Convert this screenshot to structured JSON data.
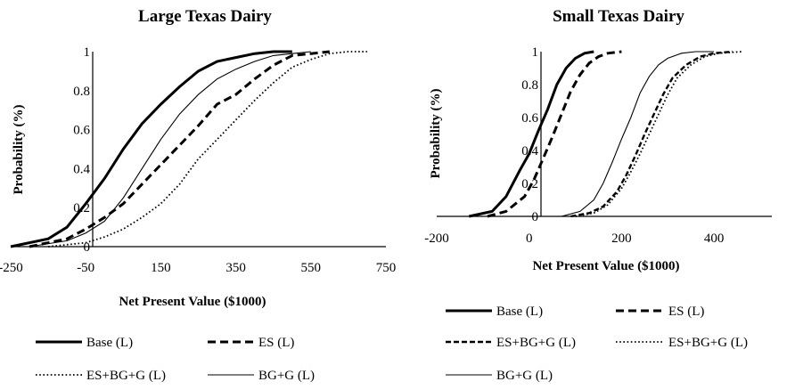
{
  "chart_data": [
    {
      "type": "line",
      "title": "Large Texas Dairy",
      "xlabel": "Net Present Value ($1000)",
      "ylabel": "Probability (%)",
      "xlim": [
        -250,
        750
      ],
      "ylim": [
        0,
        1
      ],
      "x_ticks": [
        -250,
        -50,
        150,
        350,
        550,
        750
      ],
      "x_tick_labels": [
        "-250",
        "-50",
        "150",
        "350",
        "550",
        "750"
      ],
      "y_ticks": [
        0,
        0.2,
        0.4,
        0.6,
        0.8,
        1
      ],
      "y_tick_labels": [
        "0",
        "0.2",
        "0.4",
        "0.6",
        "0.8",
        "1"
      ],
      "legend_position": "bottom",
      "series": [
        {
          "name": "Base (L)",
          "style": "solid-thick",
          "x": [
            -250,
            -150,
            -100,
            -50,
            0,
            50,
            100,
            150,
            200,
            250,
            300,
            350,
            400,
            450,
            500
          ],
          "y": [
            0,
            0.04,
            0.1,
            0.22,
            0.35,
            0.5,
            0.63,
            0.73,
            0.82,
            0.9,
            0.95,
            0.97,
            0.99,
            1,
            1
          ]
        },
        {
          "name": "ES (L)",
          "style": "dashed-thick",
          "x": [
            -200,
            -100,
            -50,
            0,
            50,
            100,
            150,
            200,
            250,
            300,
            350,
            400,
            450,
            500,
            550,
            600
          ],
          "y": [
            0,
            0.04,
            0.09,
            0.15,
            0.22,
            0.32,
            0.42,
            0.52,
            0.62,
            0.73,
            0.78,
            0.86,
            0.93,
            0.98,
            0.99,
            1
          ]
        },
        {
          "name": "ES+BG+G (L)",
          "style": "dotted",
          "x": [
            -150,
            -50,
            0,
            50,
            100,
            150,
            200,
            250,
            300,
            350,
            400,
            450,
            500,
            550,
            600,
            650,
            700
          ],
          "y": [
            0,
            0.02,
            0.05,
            0.09,
            0.15,
            0.22,
            0.32,
            0.45,
            0.55,
            0.65,
            0.75,
            0.84,
            0.92,
            0.96,
            0.99,
            1,
            1
          ]
        },
        {
          "name": "BG+G (L)",
          "style": "solid-thin",
          "x": [
            -200,
            -100,
            -50,
            0,
            50,
            100,
            150,
            200,
            250,
            300,
            350,
            400,
            450,
            500,
            550
          ],
          "y": [
            0,
            0.03,
            0.07,
            0.13,
            0.25,
            0.4,
            0.55,
            0.68,
            0.78,
            0.86,
            0.91,
            0.95,
            0.98,
            0.99,
            1
          ]
        }
      ],
      "legend": [
        {
          "label": "Base (L)",
          "style": "solid-thick"
        },
        {
          "label": "ES (L)",
          "style": "dashed-thick"
        },
        {
          "label": "ES+BG+G (L)",
          "style": "dotted"
        },
        {
          "label": "BG+G (L)",
          "style": "solid-thin"
        }
      ]
    },
    {
      "type": "line",
      "title": "Small Texas Dairy",
      "xlabel": "Net Present Value ($1000)",
      "ylabel": "Probability (%)",
      "xlim": [
        -200,
        500
      ],
      "ylim": [
        0,
        1
      ],
      "x_ticks": [
        -200,
        0,
        200,
        400
      ],
      "x_tick_labels": [
        "-200",
        "0",
        "200",
        "400"
      ],
      "y_ticks": [
        0,
        0.2,
        0.4,
        0.6,
        0.8,
        1
      ],
      "y_tick_labels": [
        "0",
        "0.2",
        "0.4",
        "0.6",
        "0.8",
        "1"
      ],
      "legend_position": "bottom",
      "series": [
        {
          "name": "Base (L)",
          "style": "solid-thick",
          "x": [
            -130,
            -80,
            -50,
            -20,
            0,
            20,
            40,
            60,
            80,
            100,
            120,
            140
          ],
          "y": [
            0,
            0.03,
            0.12,
            0.28,
            0.38,
            0.52,
            0.65,
            0.8,
            0.9,
            0.96,
            0.99,
            1
          ]
        },
        {
          "name": "ES (L)",
          "style": "dashed-thick",
          "x": [
            -90,
            -50,
            -10,
            10,
            30,
            50,
            70,
            90,
            110,
            130,
            150,
            170,
            200
          ],
          "y": [
            0,
            0.03,
            0.12,
            0.22,
            0.35,
            0.48,
            0.62,
            0.76,
            0.86,
            0.93,
            0.97,
            0.99,
            1
          ]
        },
        {
          "name": "ES+BG+G (L)",
          "style": "dashed-medium",
          "x": [
            90,
            130,
            160,
            190,
            210,
            230,
            250,
            270,
            290,
            310,
            340,
            370,
            400,
            440
          ],
          "y": [
            0,
            0.02,
            0.06,
            0.15,
            0.25,
            0.37,
            0.5,
            0.62,
            0.74,
            0.84,
            0.92,
            0.97,
            0.99,
            1
          ]
        },
        {
          "name": "ES+BG+G (L)",
          "style": "dotted",
          "x": [
            100,
            140,
            170,
            200,
            220,
            240,
            260,
            280,
            300,
            320,
            350,
            380,
            410,
            460
          ],
          "y": [
            0,
            0.02,
            0.07,
            0.17,
            0.27,
            0.38,
            0.5,
            0.62,
            0.74,
            0.84,
            0.92,
            0.97,
            0.99,
            1
          ]
        },
        {
          "name": "BG+G (L)",
          "style": "solid-thin",
          "x": [
            70,
            110,
            140,
            160,
            180,
            200,
            220,
            240,
            260,
            280,
            300,
            330,
            360,
            400
          ],
          "y": [
            0,
            0.03,
            0.1,
            0.2,
            0.33,
            0.47,
            0.6,
            0.75,
            0.85,
            0.92,
            0.96,
            0.99,
            1,
            1
          ]
        }
      ],
      "legend": [
        {
          "label": "Base (L)",
          "style": "solid-thick"
        },
        {
          "label": "ES (L)",
          "style": "dashed-thick"
        },
        {
          "label": "ES+BG+G (L)",
          "style": "dashed-medium"
        },
        {
          "label": "ES+BG+G (L)",
          "style": "dotted"
        },
        {
          "label": "BG+G (L)",
          "style": "solid-thin"
        }
      ]
    }
  ]
}
